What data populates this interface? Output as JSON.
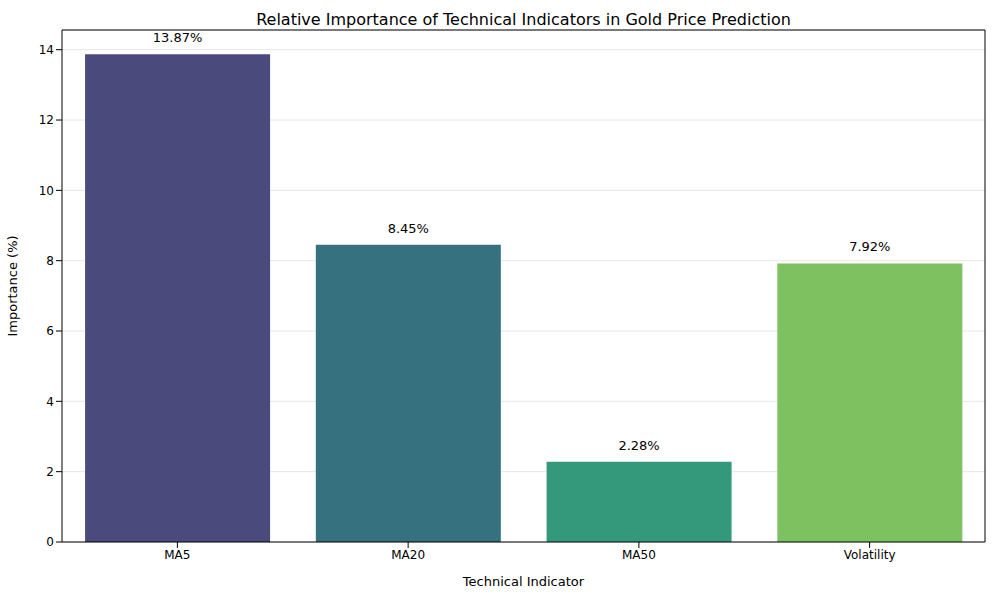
{
  "chart_data": {
    "type": "bar",
    "title": "Relative Importance of Technical Indicators in Gold Price Prediction",
    "x_label": "Technical Indicator",
    "y_label": "Importance (%)",
    "categories": [
      "MA5",
      "MA20",
      "MA50",
      "Volatility"
    ],
    "values": [
      13.87,
      8.45,
      2.28,
      7.92
    ],
    "value_labels": [
      "13.87%",
      "8.45%",
      "2.28%",
      "7.92%"
    ],
    "data_labels": true,
    "colors": [
      "#4a4b7c",
      "#36717f",
      "#34987a",
      "#7dc160"
    ],
    "ylim": [
      0,
      14.56
    ],
    "yticks": [
      0,
      2,
      4,
      6,
      8,
      10,
      12,
      14
    ],
    "grid": true
  }
}
